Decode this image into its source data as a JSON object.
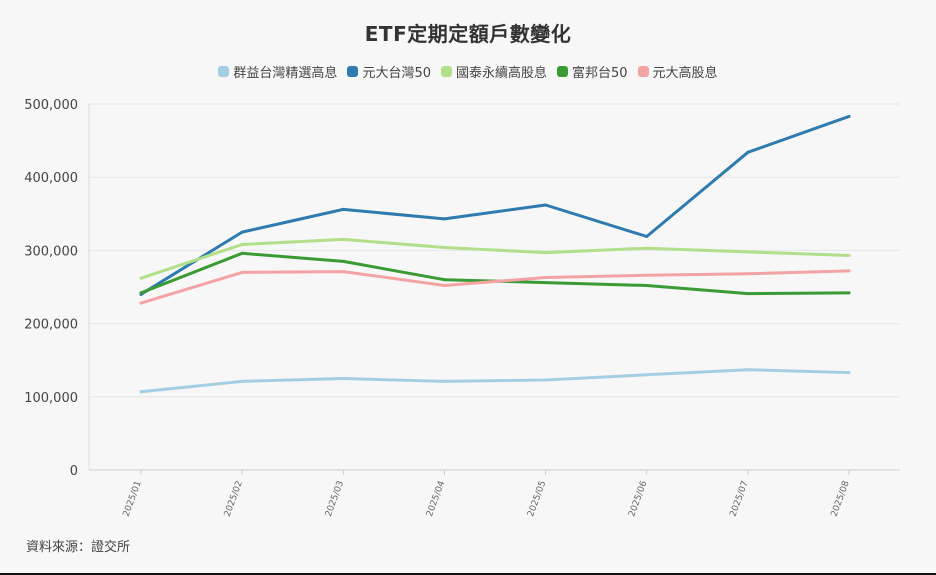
{
  "chart_data": {
    "type": "line",
    "title": "ETF定期定額戶數變化",
    "categories": [
      "2025/01",
      "2025/02",
      "2025/03",
      "2025/04",
      "2025/05",
      "2025/06",
      "2025/07",
      "2025/08"
    ],
    "ylim": [
      0,
      500000
    ],
    "yticks": [
      0,
      100000,
      200000,
      300000,
      400000,
      500000
    ],
    "ytick_labels": [
      "0",
      "100,000",
      "200,000",
      "300,000",
      "400,000",
      "500,000"
    ],
    "grid": true,
    "legend_position": "top-center",
    "series": [
      {
        "name": "群益台灣精選高息",
        "color": "#a6cee3",
        "values": [
          107000,
          121000,
          125000,
          121000,
          123000,
          130000,
          137000,
          133000
        ]
      },
      {
        "name": "元大台灣50",
        "color": "#2f7bb0",
        "values": [
          240000,
          325000,
          356000,
          343000,
          362000,
          319000,
          434000,
          483000
        ]
      },
      {
        "name": "國泰永續高股息",
        "color": "#b2df8a",
        "values": [
          262000,
          308000,
          315000,
          304000,
          297000,
          303000,
          298000,
          293000
        ]
      },
      {
        "name": "富邦台50",
        "color": "#3a9b35",
        "values": [
          242000,
          296000,
          285000,
          260000,
          256000,
          252000,
          241000,
          242000
        ]
      },
      {
        "name": "元大高股息",
        "color": "#f4a3a3",
        "values": [
          228000,
          270000,
          271000,
          252000,
          263000,
          266000,
          268000,
          272000
        ]
      }
    ]
  },
  "source": "資料來源：證交所"
}
